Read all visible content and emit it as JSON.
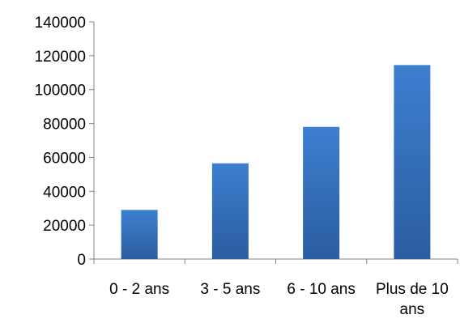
{
  "chart_data": {
    "type": "bar",
    "categories": [
      "0 - 2 ans",
      "3 - 5 ans",
      "6 - 10 ans",
      "Plus de 10 ans"
    ],
    "category_label_lines": [
      [
        "0 - 2 ans"
      ],
      [
        "3 - 5 ans"
      ],
      [
        "6 - 10 ans"
      ],
      [
        "Plus de 10",
        "ans"
      ]
    ],
    "values": [
      29000,
      56500,
      78000,
      114500
    ],
    "title": "",
    "xlabel": "",
    "ylabel": "",
    "ylim": [
      0,
      140000
    ],
    "yticks": [
      "0",
      "20000",
      "40000",
      "60000",
      "80000",
      "100000",
      "120000",
      "140000"
    ],
    "grid": false,
    "legend": "none",
    "colors": {
      "bar_top": "#3d7fd0",
      "bar_bottom": "#2b5da0",
      "axis": "#868686"
    }
  }
}
